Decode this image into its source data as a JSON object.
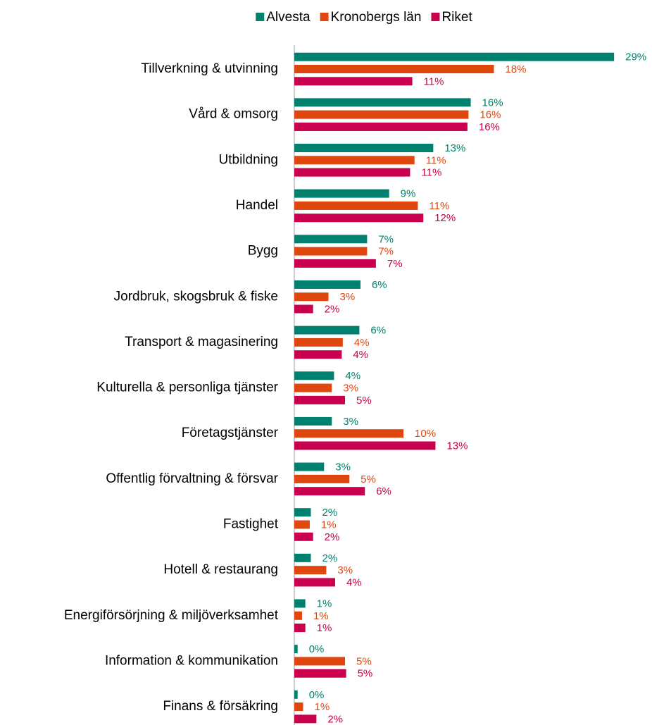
{
  "chart_data": {
    "type": "bar",
    "orientation": "horizontal",
    "categories": [
      "Tillverkning & utvinning",
      "Vård & omsorg",
      "Utbildning",
      "Handel",
      "Bygg",
      "Jordbruk, skogsbruk & fiske",
      "Transport & magasinering",
      "Kulturella & personliga tjänster",
      "Företagstjänster",
      "Offentlig förvaltning & försvar",
      "Fastighet",
      "Hotell & restaurang",
      "Energiförsörjning & miljöverksamhet",
      "Information & kommunikation",
      "Finans & försäkring"
    ],
    "series": [
      {
        "name": "Alvesta",
        "color": "#00806e",
        "values": [
          29.0,
          16.0,
          12.6,
          8.6,
          6.6,
          6.0,
          5.9,
          3.6,
          3.4,
          2.7,
          1.5,
          1.5,
          1.0,
          0.3,
          0.3
        ],
        "value_labels": [
          "29%",
          "16%",
          "13%",
          "9%",
          "7%",
          "6%",
          "6%",
          "4%",
          "3%",
          "3%",
          "2%",
          "2%",
          "1%",
          "0%",
          "0%"
        ]
      },
      {
        "name": "Kronobergs län",
        "color": "#e0470f",
        "values": [
          18.1,
          15.8,
          10.9,
          11.2,
          6.6,
          3.1,
          4.4,
          3.4,
          9.9,
          5.0,
          1.4,
          2.9,
          0.7,
          4.6,
          0.8
        ],
        "value_labels": [
          "18%",
          "16%",
          "11%",
          "11%",
          "7%",
          "3%",
          "4%",
          "3%",
          "10%",
          "5%",
          "1%",
          "3%",
          "1%",
          "5%",
          "1%"
        ]
      },
      {
        "name": "Riket",
        "color": "#c8004d",
        "values": [
          10.7,
          15.7,
          10.5,
          11.7,
          7.4,
          1.7,
          4.3,
          4.6,
          12.8,
          6.4,
          1.7,
          3.7,
          1.0,
          4.7,
          2.0
        ],
        "value_labels": [
          "11%",
          "16%",
          "11%",
          "12%",
          "7%",
          "2%",
          "4%",
          "5%",
          "13%",
          "6%",
          "2%",
          "4%",
          "1%",
          "5%",
          "2%"
        ]
      }
    ],
    "legend": "top"
  }
}
